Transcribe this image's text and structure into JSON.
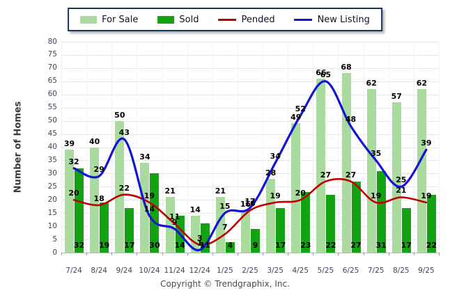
{
  "legend": {
    "items": [
      {
        "label": "For Sale",
        "swatch": "bar-light-green-swatch"
      },
      {
        "label": "Sold",
        "swatch": "bar-dark-green-swatch"
      },
      {
        "label": "Pended",
        "swatch": "red-line-swatch"
      },
      {
        "label": "New Listing",
        "swatch": "blue-line-swatch"
      }
    ],
    "border_color": "#17365d"
  },
  "axes": {
    "y_title": "Number of Homes"
  },
  "footer": {
    "copyright": "Copyright © Trendgraphix, Inc."
  },
  "colors": {
    "for_sale": "#a9da9e",
    "sold": "#12a212",
    "pended": "#c00000",
    "new_listing": "#1414d6"
  },
  "chart_data": {
    "type": "bar",
    "categories": [
      "7/24",
      "8/24",
      "9/24",
      "10/24",
      "11/24",
      "12/24",
      "1/25",
      "2/25",
      "3/25",
      "4/25",
      "5/25",
      "6/25",
      "7/25",
      "8/25",
      "9/25"
    ],
    "series": [
      {
        "name": "For Sale",
        "kind": "bar",
        "color": "#a9da9e",
        "values": [
          39,
          40,
          50,
          34,
          21,
          14,
          21,
          16,
          28,
          49,
          66,
          68,
          62,
          57,
          62
        ]
      },
      {
        "name": "Sold",
        "kind": "bar",
        "color": "#12a212",
        "values": [
          32,
          19,
          17,
          30,
          14,
          11,
          4,
          9,
          17,
          23,
          22,
          27,
          31,
          17,
          22
        ]
      },
      {
        "name": "Pended",
        "kind": "line",
        "color": "#c00000",
        "values": [
          20,
          18,
          22,
          19,
          11,
          3,
          7,
          16,
          19,
          20,
          27,
          27,
          19,
          21,
          19
        ]
      },
      {
        "name": "New Listing",
        "kind": "line",
        "color": "#1414d6",
        "values": [
          32,
          29,
          43,
          14,
          9,
          1,
          15,
          17,
          34,
          52,
          65,
          48,
          35,
          25,
          39
        ]
      }
    ],
    "title": "",
    "xlabel": "",
    "ylabel": "Number of Homes",
    "ylim": [
      0,
      80
    ],
    "ytick_step": 5,
    "grid": true,
    "legend_position": "top"
  }
}
